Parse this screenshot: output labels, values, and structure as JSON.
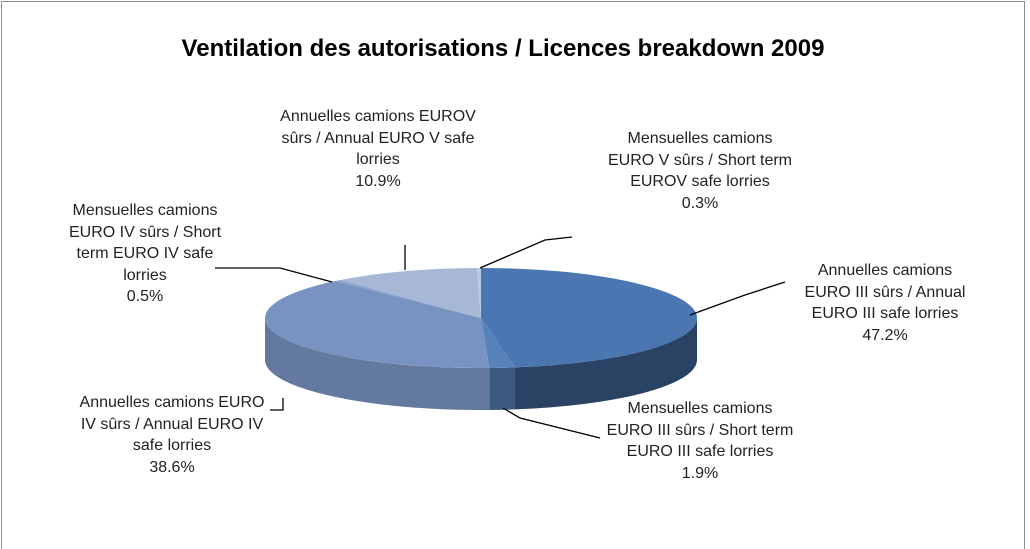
{
  "chart_data": {
    "type": "pie3d",
    "title": "Ventilation des autorisations / Licences breakdown 2009",
    "categories": [
      "Annuelles camions EURO III sûrs / Annual EURO III safe lorries",
      "Mensuelles camions EURO III sûrs / Short term EURO III safe lorries",
      "Annuelles camions EURO IV sûrs / Annual EURO IV safe lorries",
      "Mensuelles camions EURO IV sûrs / Short term EURO IV safe lorries",
      "Annuelles camions EUROV sûrs / Annual EURO V safe lorries",
      "Mensuelles camions EURO V sûrs / Short term EUROV safe lorries"
    ],
    "values": [
      47.2,
      1.9,
      38.6,
      0.5,
      10.9,
      0.3
    ],
    "value_labels": [
      "47.2%",
      "1.9%",
      "38.6%",
      "0.5%",
      "10.9%",
      "0.3%"
    ],
    "colors": [
      "#4a77b2",
      "#5882bb",
      "#7893c2",
      "#8aa3cb",
      "#a7b8d6",
      "#bccae1"
    ]
  }
}
